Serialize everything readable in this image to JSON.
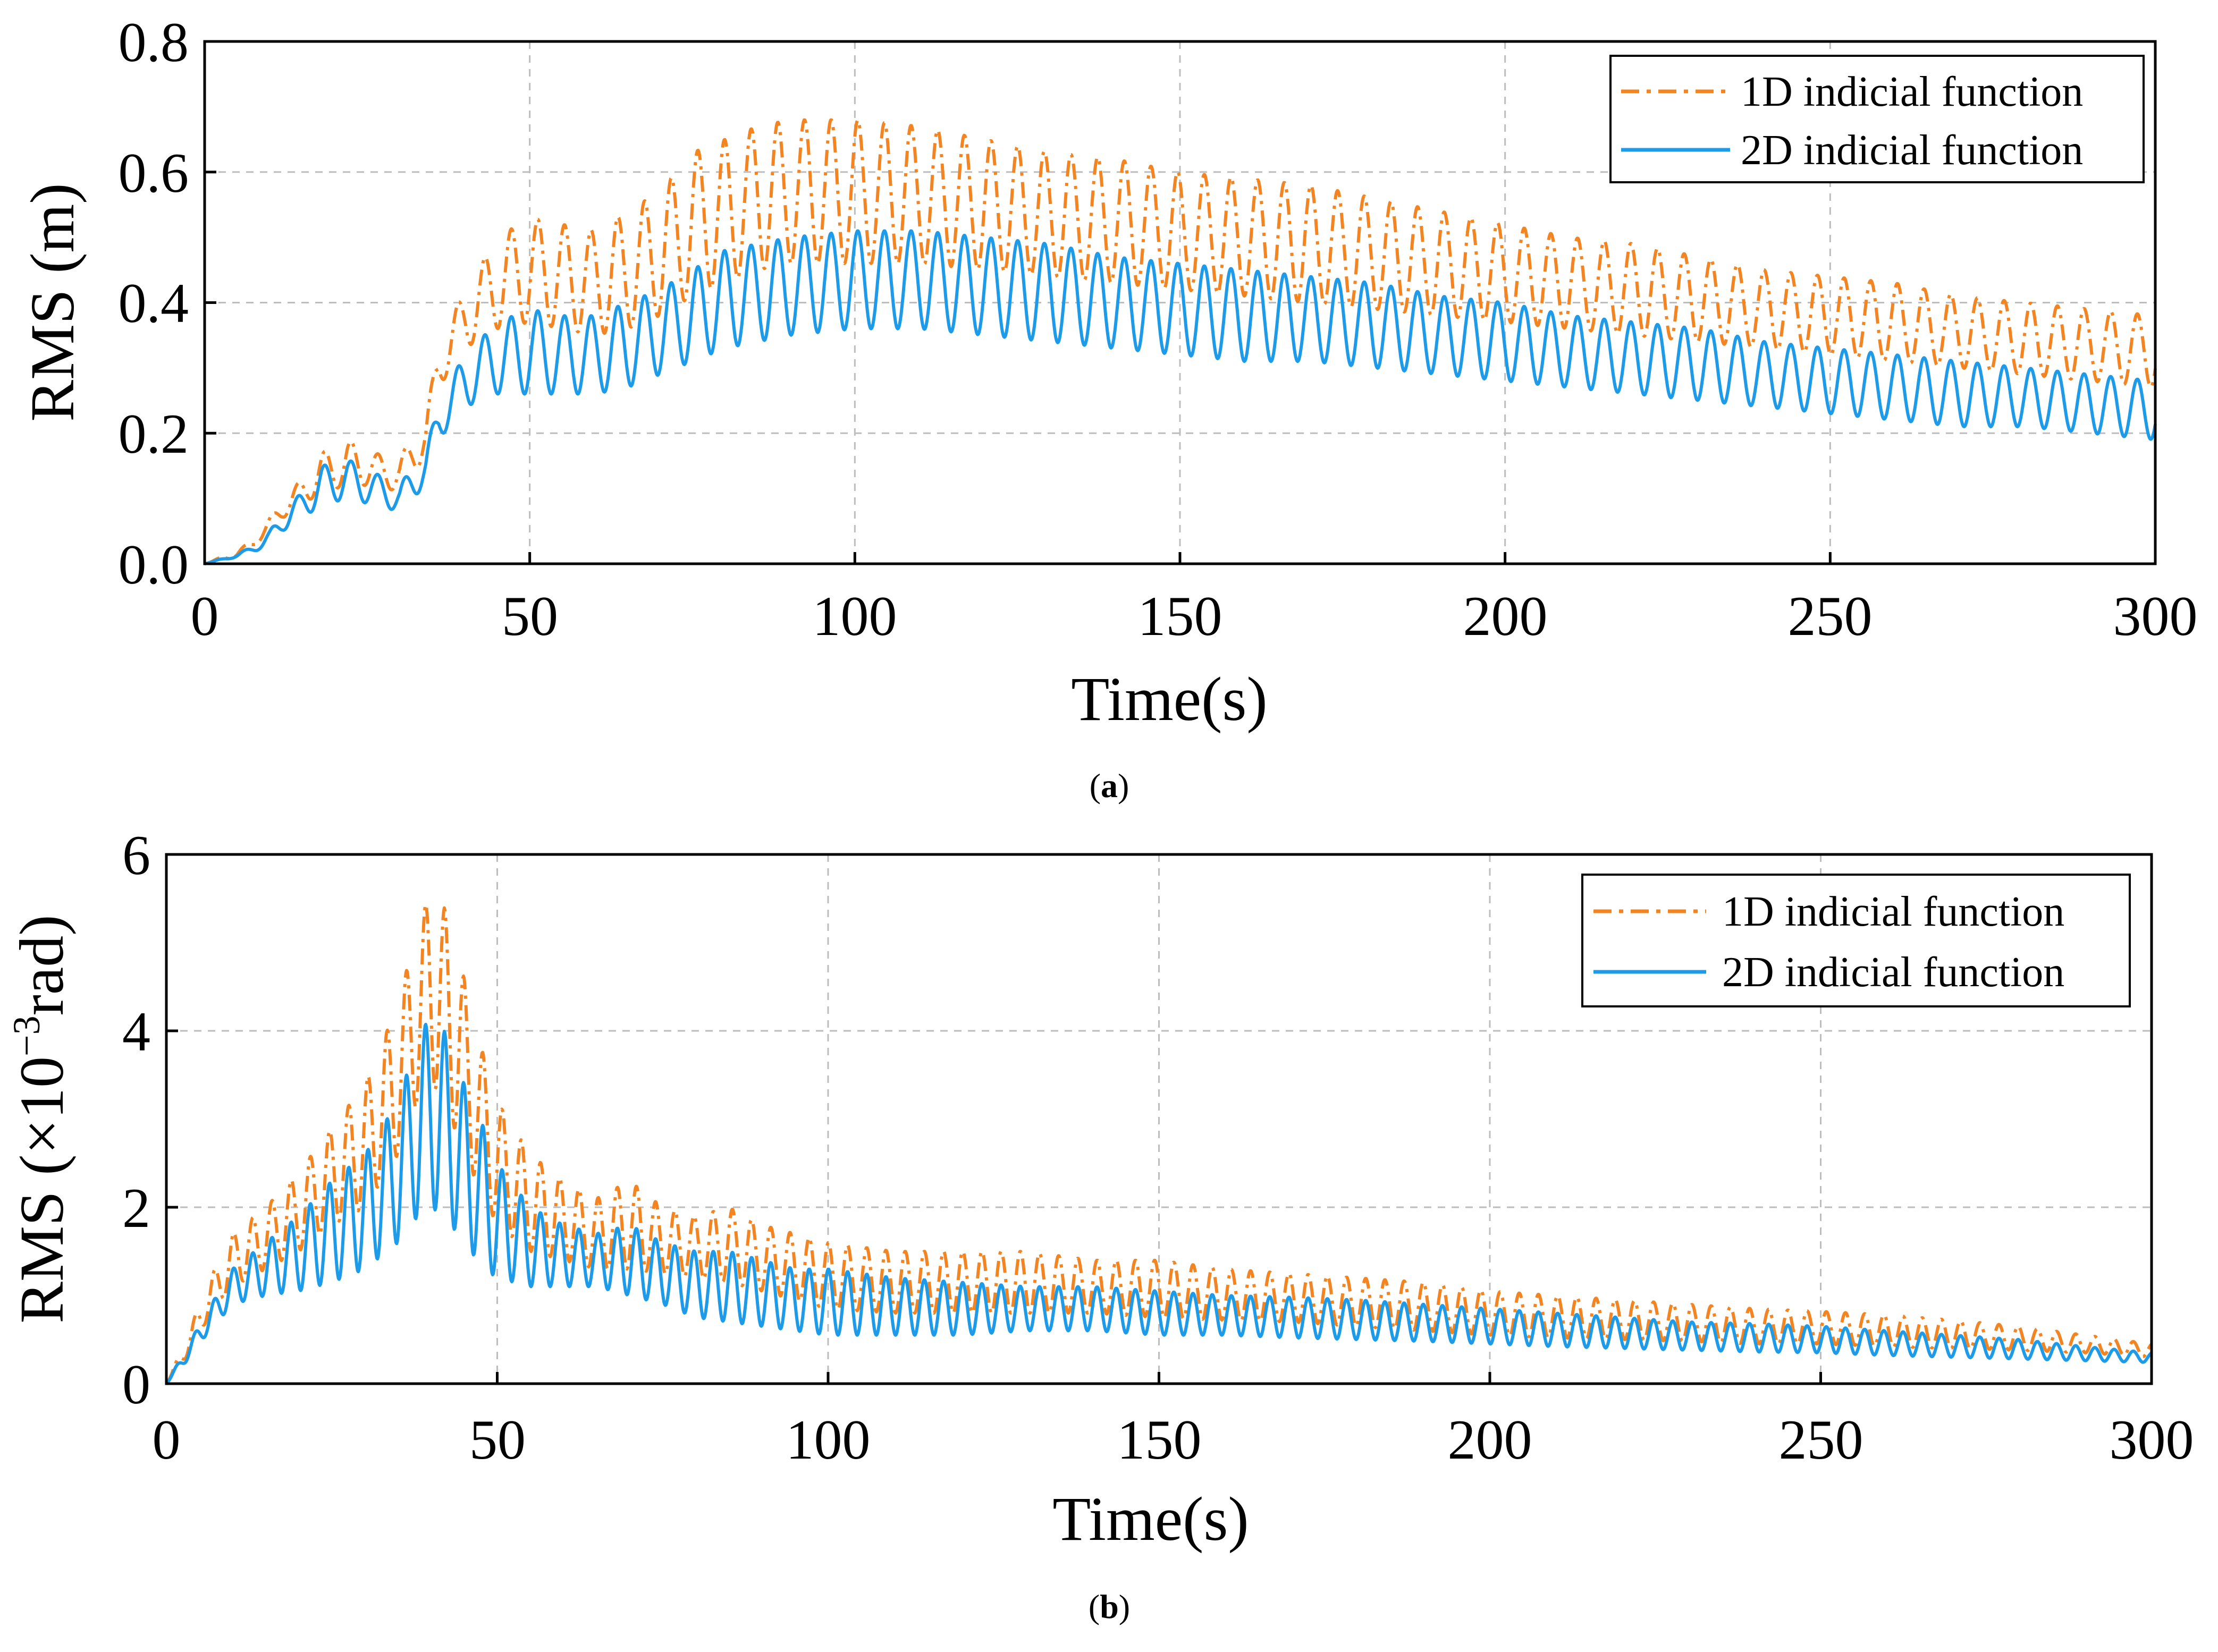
{
  "colors": {
    "series_1d": "#F28522",
    "series_2d": "#1E9BE8",
    "grid": "#bdbdbd",
    "axes": "#000000"
  },
  "chart_data": [
    {
      "type": "line",
      "caption_letter": "a",
      "xlabel": "Time(s)",
      "ylabel": "RMS (m)",
      "xlim": [
        0,
        300
      ],
      "ylim": [
        0,
        0.8
      ],
      "x_ticks": [
        0,
        50,
        100,
        150,
        200,
        250,
        300
      ],
      "x_tick_labels": [
        "0",
        "50",
        "100",
        "150",
        "200",
        "250",
        "300"
      ],
      "y_ticks": [
        0,
        0.2,
        0.4,
        0.6,
        0.8
      ],
      "y_tick_labels": [
        "0.0",
        "0.2",
        "0.4",
        "0.6",
        "0.8"
      ],
      "grid": true,
      "legend_position": "top-right",
      "legend": [
        "1D indicial function",
        "2D indicial function"
      ],
      "series": [
        {
          "name": "1D indicial function",
          "style": "dash-dot",
          "oscillation_period_s": 4.1,
          "envelope": {
            "t": [
              0,
              5,
              8,
              10,
              12,
              15,
              18,
              22,
              26,
              30,
              32,
              34,
              36,
              40,
              45,
              50,
              55,
              60,
              65,
              70,
              75,
              80,
              85,
              90,
              100,
              110,
              120,
              130,
              140,
              150,
              160,
              170,
              180,
              190,
              200,
              210,
              220,
              230,
              240,
              250,
              260,
              270,
              280,
              290,
              300
            ],
            "upper": [
              0,
              0.02,
              0.04,
              0.07,
              0.1,
              0.13,
              0.17,
              0.19,
              0.17,
              0.16,
              0.2,
              0.22,
              0.34,
              0.42,
              0.5,
              0.53,
              0.52,
              0.51,
              0.54,
              0.57,
              0.63,
              0.65,
              0.67,
              0.68,
              0.68,
              0.67,
              0.65,
              0.63,
              0.62,
              0.6,
              0.59,
              0.58,
              0.56,
              0.54,
              0.52,
              0.5,
              0.49,
              0.47,
              0.45,
              0.44,
              0.43,
              0.41,
              0.4,
              0.39,
              0.38
            ],
            "lower": [
              0,
              0.01,
              0.03,
              0.05,
              0.07,
              0.09,
              0.11,
              0.12,
              0.12,
              0.11,
              0.14,
              0.16,
              0.27,
              0.33,
              0.36,
              0.37,
              0.36,
              0.35,
              0.36,
              0.38,
              0.41,
              0.43,
              0.45,
              0.46,
              0.46,
              0.46,
              0.45,
              0.44,
              0.43,
              0.42,
              0.41,
              0.4,
              0.39,
              0.38,
              0.37,
              0.36,
              0.35,
              0.34,
              0.33,
              0.32,
              0.31,
              0.3,
              0.29,
              0.28,
              0.27
            ]
          }
        },
        {
          "name": "2D indicial function",
          "style": "solid",
          "oscillation_period_s": 4.1,
          "envelope": {
            "t": [
              0,
              5,
              8,
              10,
              12,
              15,
              18,
              22,
              26,
              30,
              32,
              34,
              36,
              40,
              45,
              50,
              55,
              60,
              65,
              70,
              75,
              80,
              85,
              90,
              100,
              110,
              120,
              130,
              140,
              150,
              160,
              170,
              180,
              190,
              200,
              210,
              220,
              230,
              240,
              250,
              260,
              270,
              280,
              290,
              300
            ],
            "upper": [
              0,
              0.015,
              0.03,
              0.05,
              0.08,
              0.11,
              0.15,
              0.16,
              0.14,
              0.12,
              0.15,
              0.17,
              0.25,
              0.32,
              0.37,
              0.39,
              0.38,
              0.38,
              0.4,
              0.42,
              0.45,
              0.48,
              0.49,
              0.5,
              0.51,
              0.51,
              0.5,
              0.49,
              0.47,
              0.46,
              0.45,
              0.44,
              0.43,
              0.41,
              0.4,
              0.38,
              0.37,
              0.36,
              0.34,
              0.33,
              0.32,
              0.31,
              0.3,
              0.29,
              0.28
            ],
            "lower": [
              0,
              0.01,
              0.02,
              0.03,
              0.05,
              0.07,
              0.09,
              0.1,
              0.09,
              0.08,
              0.1,
              0.12,
              0.19,
              0.24,
              0.26,
              0.26,
              0.26,
              0.26,
              0.27,
              0.29,
              0.31,
              0.33,
              0.34,
              0.35,
              0.36,
              0.36,
              0.35,
              0.34,
              0.33,
              0.32,
              0.31,
              0.31,
              0.3,
              0.29,
              0.28,
              0.27,
              0.26,
              0.25,
              0.24,
              0.23,
              0.22,
              0.21,
              0.21,
              0.2,
              0.19
            ]
          }
        }
      ]
    },
    {
      "type": "line",
      "caption_letter": "b",
      "xlabel": "Time(s)",
      "ylabel_prefix": "RMS (×10",
      "ylabel_exponent": "−3",
      "ylabel_suffix": "rad)",
      "xlim": [
        0,
        300
      ],
      "ylim": [
        0,
        6
      ],
      "x_ticks": [
        0,
        50,
        100,
        150,
        200,
        250,
        300
      ],
      "x_tick_labels": [
        "0",
        "50",
        "100",
        "150",
        "200",
        "250",
        "300"
      ],
      "y_ticks": [
        0,
        2,
        4,
        6
      ],
      "y_tick_labels": [
        "0",
        "2",
        "4",
        "6"
      ],
      "grid": true,
      "legend_position": "top-right",
      "legend": [
        "1D indicial function",
        "2D indicial function"
      ],
      "series": [
        {
          "name": "1D indicial function",
          "style": "dash-dot",
          "oscillation_period_s": 2.9,
          "envelope": {
            "t": [
              0,
              3,
              6,
              10,
              15,
              20,
              25,
              30,
              35,
              38,
              40,
              42,
              45,
              48,
              50,
              55,
              60,
              65,
              70,
              75,
              80,
              85,
              90,
              95,
              100,
              110,
              120,
              130,
              140,
              150,
              160,
              170,
              180,
              190,
              200,
              210,
              220,
              230,
              240,
              250,
              260,
              270,
              280,
              290,
              300
            ],
            "upper": [
              0,
              0.5,
              1.1,
              1.7,
              2.0,
              2.4,
              2.9,
              3.4,
              4.3,
              5.2,
              5.6,
              5.4,
              4.6,
              3.7,
              3.2,
              2.6,
              2.3,
              2.1,
              2.3,
              2.0,
              1.9,
              2.0,
              1.8,
              1.7,
              1.6,
              1.5,
              1.5,
              1.5,
              1.4,
              1.4,
              1.3,
              1.25,
              1.2,
              1.15,
              1.05,
              1.0,
              0.95,
              0.9,
              0.85,
              0.82,
              0.78,
              0.72,
              0.65,
              0.55,
              0.45
            ],
            "lower": [
              0,
              0.3,
              0.7,
              1.1,
              1.3,
              1.5,
              1.8,
              2.0,
              2.6,
              3.2,
              3.4,
              3.2,
              2.6,
              2.1,
              1.8,
              1.5,
              1.4,
              1.3,
              1.3,
              1.25,
              1.2,
              1.15,
              1.05,
              0.95,
              0.85,
              0.8,
              0.8,
              0.8,
              0.8,
              0.75,
              0.72,
              0.7,
              0.65,
              0.6,
              0.55,
              0.52,
              0.5,
              0.48,
              0.45,
              0.45,
              0.42,
              0.4,
              0.38,
              0.35,
              0.3
            ]
          }
        },
        {
          "name": "2D indicial function",
          "style": "solid",
          "oscillation_period_s": 2.9,
          "envelope": {
            "t": [
              0,
              3,
              6,
              10,
              15,
              20,
              25,
              30,
              35,
              38,
              40,
              42,
              45,
              48,
              50,
              55,
              60,
              65,
              70,
              75,
              80,
              85,
              90,
              95,
              100,
              110,
              120,
              130,
              140,
              150,
              160,
              170,
              180,
              190,
              200,
              210,
              220,
              230,
              240,
              250,
              260,
              270,
              280,
              290,
              300
            ],
            "upper": [
              0,
              0.4,
              0.8,
              1.3,
              1.6,
              1.9,
              2.3,
              2.6,
              3.2,
              3.9,
              4.2,
              4.0,
              3.4,
              2.9,
              2.5,
              2.0,
              1.8,
              1.7,
              1.8,
              1.6,
              1.5,
              1.5,
              1.4,
              1.3,
              1.3,
              1.2,
              1.15,
              1.1,
              1.1,
              1.05,
              1.0,
              0.98,
              0.95,
              0.9,
              0.85,
              0.8,
              0.75,
              0.7,
              0.68,
              0.65,
              0.6,
              0.55,
              0.5,
              0.42,
              0.35
            ],
            "lower": [
              0,
              0.25,
              0.55,
              0.9,
              1.0,
              1.05,
              1.15,
              1.3,
              1.6,
              1.9,
              2.0,
              1.9,
              1.6,
              1.3,
              1.2,
              1.1,
              1.1,
              1.1,
              1.0,
              0.9,
              0.75,
              0.7,
              0.65,
              0.6,
              0.55,
              0.55,
              0.55,
              0.6,
              0.6,
              0.55,
              0.55,
              0.52,
              0.5,
              0.48,
              0.45,
              0.42,
              0.4,
              0.38,
              0.36,
              0.35,
              0.32,
              0.3,
              0.28,
              0.26,
              0.24
            ]
          }
        }
      ]
    }
  ]
}
